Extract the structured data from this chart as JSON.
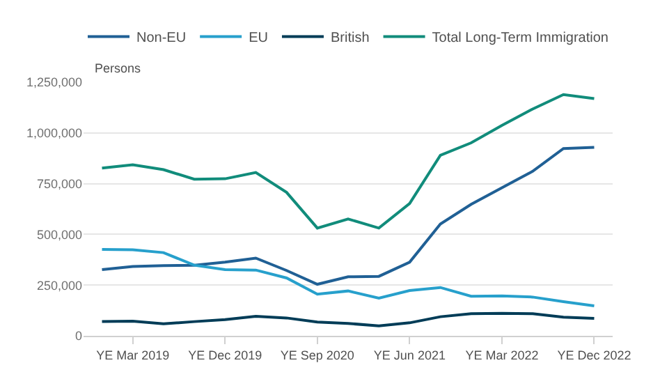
{
  "chart_data": {
    "type": "line",
    "ylabel": "Persons",
    "categories": [
      null,
      "YE Mar 2019",
      null,
      null,
      "YE Dec 2019",
      null,
      null,
      "YE Sep 2020",
      null,
      null,
      "YE Jun 2021",
      null,
      null,
      "YE Mar 2022",
      null,
      null,
      "YE Dec 2022"
    ],
    "series": [
      {
        "name": "Non-EU",
        "color": "#206095",
        "values": [
          326000,
          342000,
          346000,
          348000,
          363000,
          383000,
          322000,
          254000,
          291000,
          293000,
          363000,
          551000,
          648000,
          730000,
          811000,
          923000,
          929000
        ]
      },
      {
        "name": "EU",
        "color": "#27a0cc",
        "values": [
          426000,
          424000,
          410000,
          348000,
          326000,
          324000,
          285000,
          205000,
          221000,
          186000,
          223000,
          238000,
          195000,
          197000,
          191000,
          168000,
          148000
        ]
      },
      {
        "name": "British",
        "color": "#003c57",
        "values": [
          70000,
          72000,
          59000,
          70000,
          80000,
          96000,
          88000,
          68000,
          61000,
          49000,
          64000,
          94000,
          109000,
          111000,
          109000,
          92000,
          86000
        ]
      },
      {
        "name": "Total Long-Term Immigration",
        "color": "#118c7b",
        "values": [
          827000,
          843000,
          819000,
          772000,
          774000,
          805000,
          707000,
          531000,
          576000,
          531000,
          652000,
          890000,
          951000,
          1037000,
          1118000,
          1189000,
          1169000
        ]
      }
    ],
    "ylim": [
      0,
      1250000
    ],
    "yticks": [
      {
        "value": 0,
        "label": "0"
      },
      {
        "value": 250000,
        "label": "250,000"
      },
      {
        "value": 500000,
        "label": "500,000"
      },
      {
        "value": 750000,
        "label": "750,000"
      },
      {
        "value": 1000000,
        "label": "1,000,000"
      },
      {
        "value": 1250000,
        "label": "1,250,000"
      }
    ],
    "grid": "y",
    "legend": "top",
    "marker": "none",
    "line_style": "solid"
  }
}
